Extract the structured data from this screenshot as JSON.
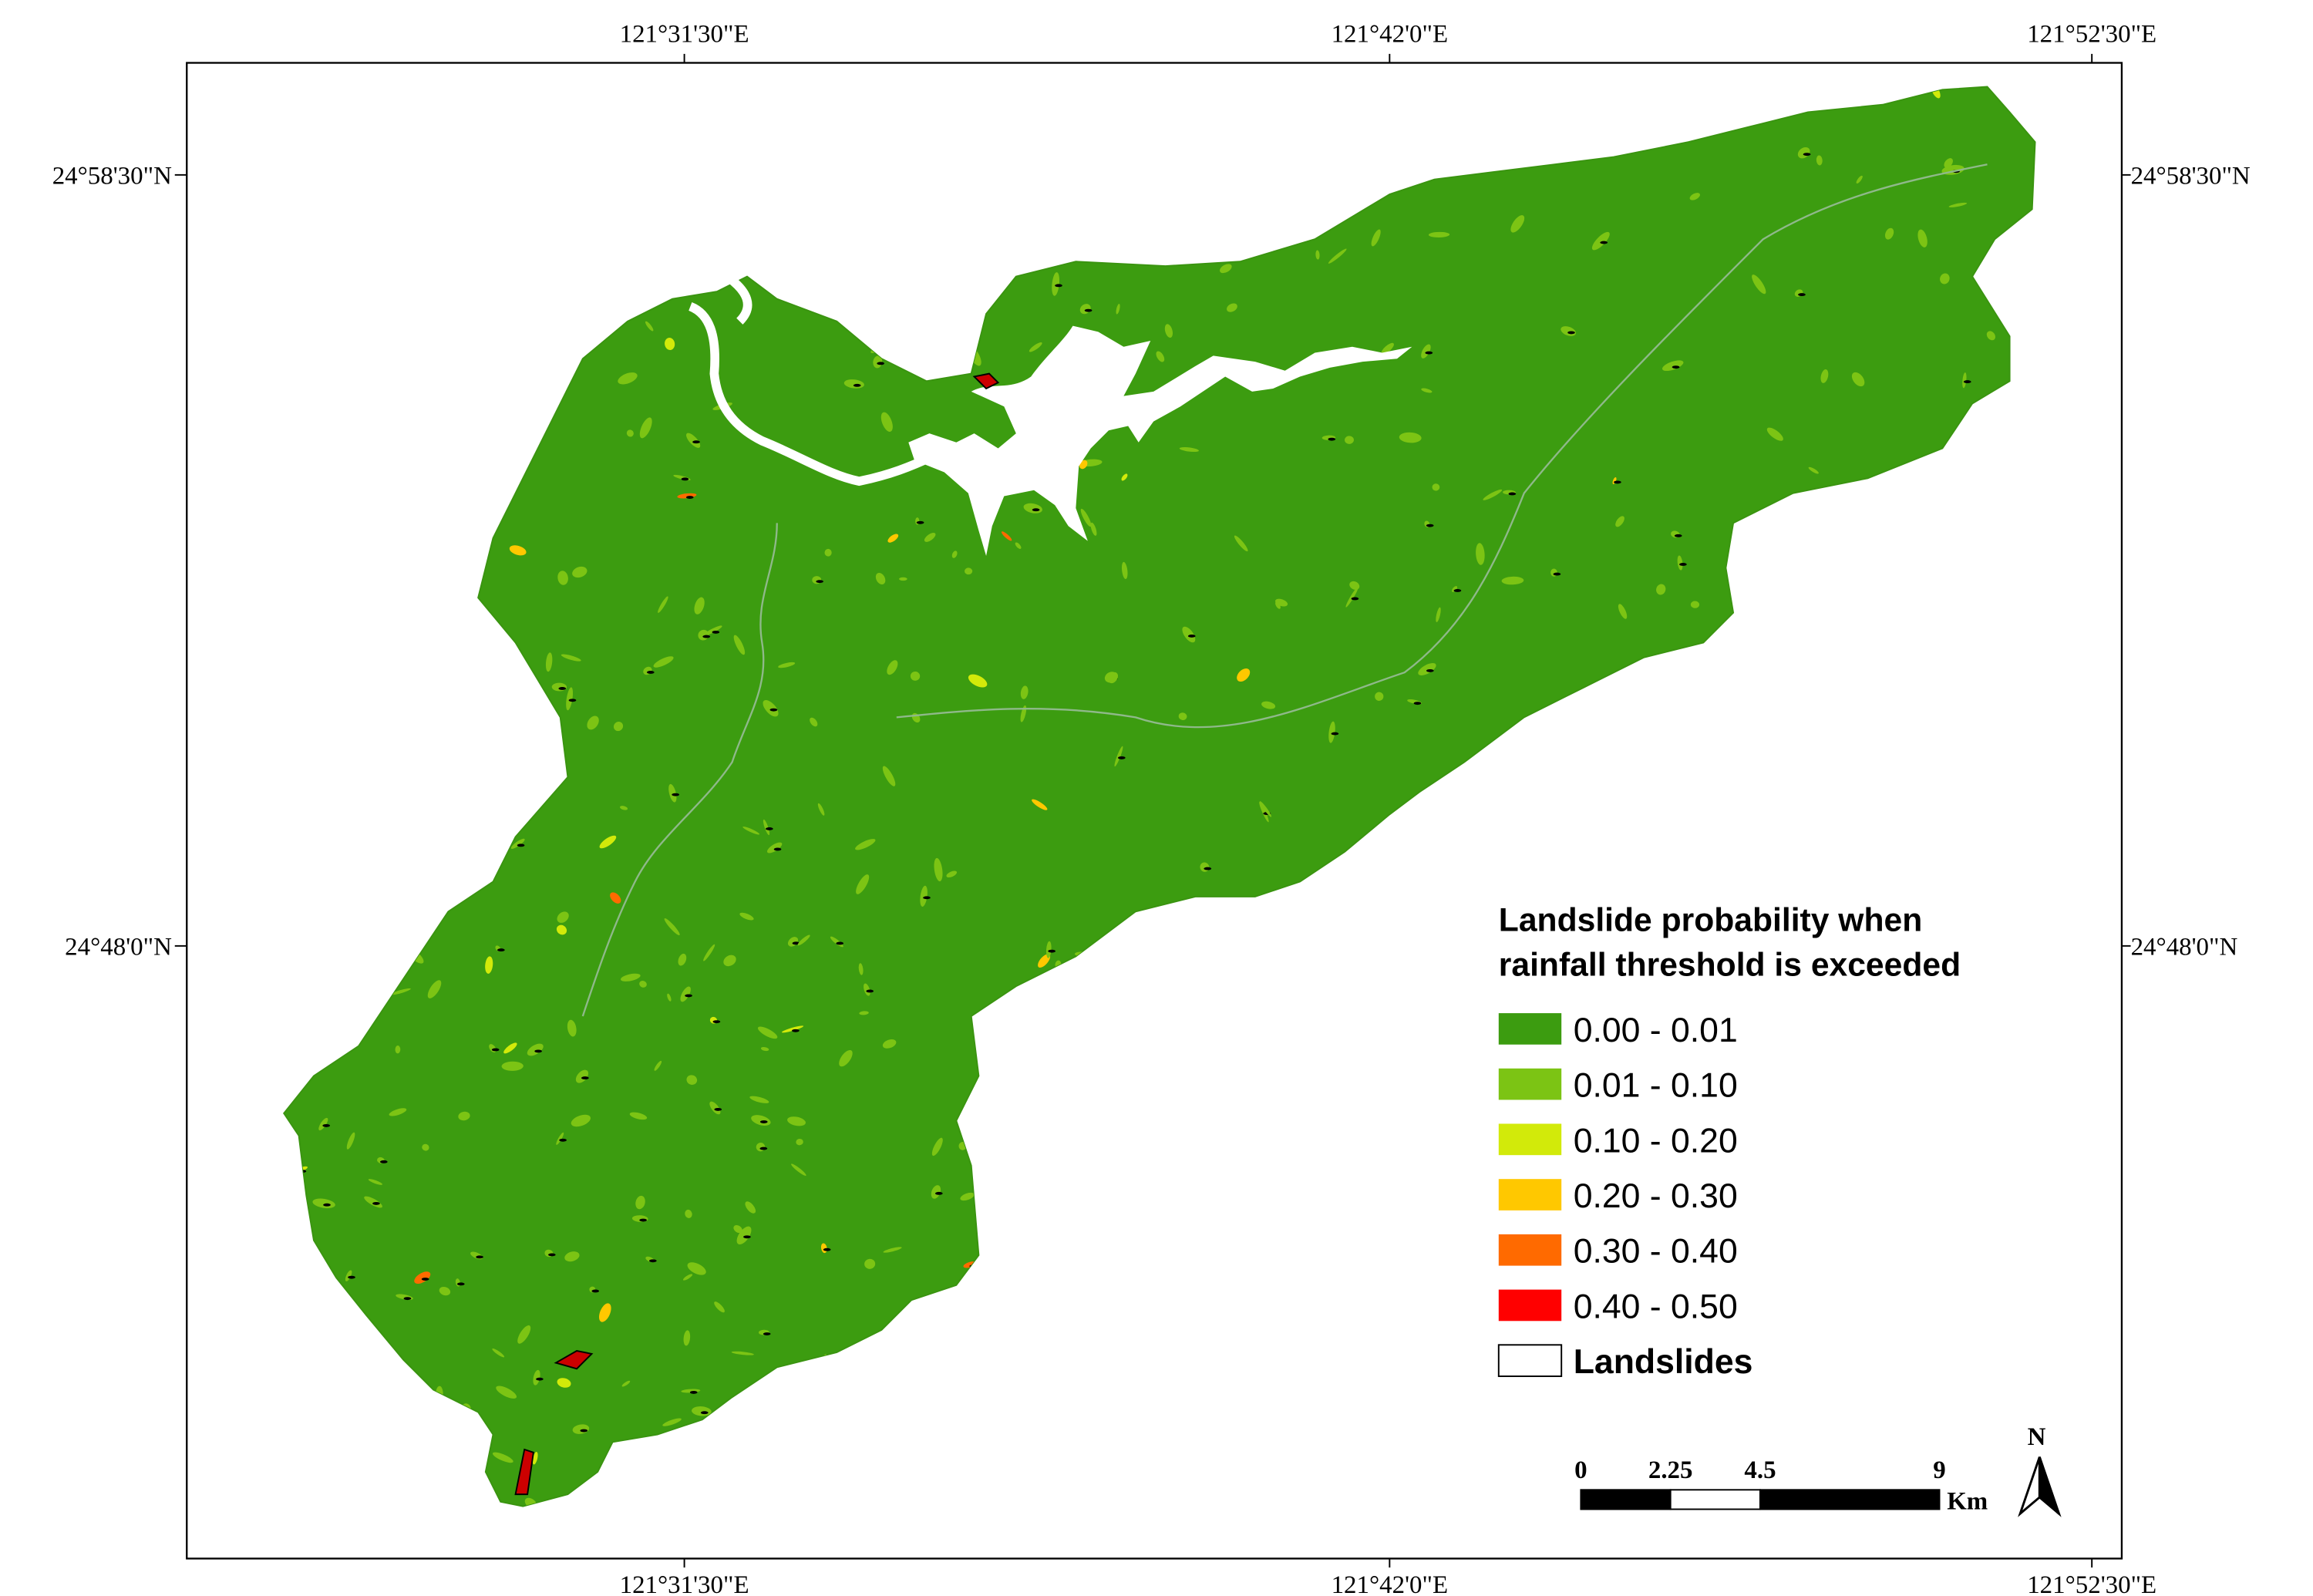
{
  "map": {
    "graticule": {
      "top": [
        "121°31'30\"E",
        "121°42'0\"E",
        "121°52'30\"E"
      ],
      "bottom": [
        "121°31'30\"E",
        "121°42'0\"E",
        "121°52'30\"E"
      ],
      "left": [
        "24°58'30\"N",
        "24°48'0\"N"
      ],
      "right": [
        "24°58'30\"N",
        "24°48'0\"N"
      ]
    },
    "legend": {
      "title": [
        "Landslide probability when",
        "rainfall threshold is exceeded"
      ],
      "items": [
        {
          "label": "0.00 - 0.01",
          "color": "#3c9c10"
        },
        {
          "label": "0.01 - 0.10",
          "color": "#7cc414"
        },
        {
          "label": "0.10 - 0.20",
          "color": "#d2ea0a"
        },
        {
          "label": "0.20 - 0.30",
          "color": "#ffc800"
        },
        {
          "label": "0.30 - 0.40",
          "color": "#ff6a00"
        },
        {
          "label": "0.40 - 0.50",
          "color": "#ff0000"
        },
        {
          "label": "Landslides",
          "color": "#ffffff"
        }
      ]
    },
    "scale_bar": {
      "ticks": [
        0,
        2.25,
        4.5,
        9
      ],
      "unit": "Km"
    },
    "north_arrow": "N"
  }
}
